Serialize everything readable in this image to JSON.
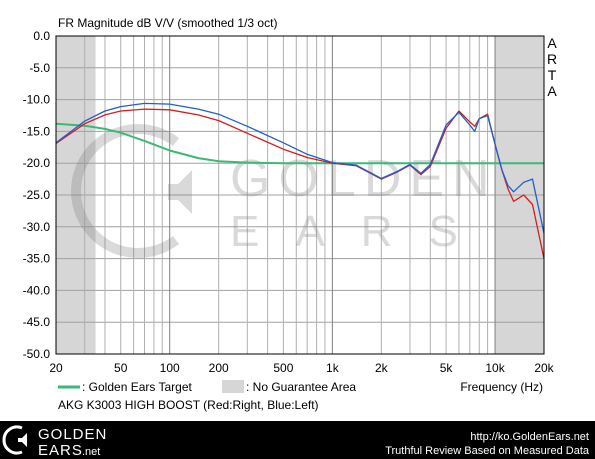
{
  "title": "FR Magnitude dB V/V (smoothed 1/3 oct)",
  "watermark": "ARTA",
  "logo_text_1": "GOLDEN",
  "logo_text_2": "EARS",
  "footer": {
    "brand_line1": "GOLDEN",
    "brand_line2": "EARS",
    "brand_suffix": ".net",
    "url": "http://ko.GoldenEars.net",
    "tagline": "Truthful Review Based on Measured Data"
  },
  "legend": {
    "target_label": ": Golden Ears Target",
    "no_guarantee_label": ": No Guarantee Area",
    "device_label": "AKG K3003 HIGH BOOST (Red:Right, Blue:Left)"
  },
  "colors": {
    "target": "#3cb878",
    "right": "#d81c1c",
    "left": "#1f5fc8",
    "shade": "#d6d6d6"
  },
  "chart_data": {
    "type": "line",
    "title": "FR Magnitude dB V/V (smoothed 1/3 oct)",
    "xlabel": "Frequency (Hz)",
    "ylabel": "",
    "x_scale": "log",
    "xlim": [
      20,
      20000
    ],
    "ylim": [
      -50,
      0
    ],
    "grid": true,
    "x_ticks": [
      20,
      50,
      100,
      200,
      500,
      1000,
      2000,
      5000,
      10000,
      20000
    ],
    "x_tick_labels": [
      "20",
      "50",
      "100",
      "200",
      "500",
      "1k",
      "2k",
      "5k",
      "10k",
      "20k"
    ],
    "y_ticks": [
      0,
      -5,
      -10,
      -15,
      -20,
      -25,
      -30,
      -35,
      -40,
      -45,
      -50
    ],
    "y_tick_labels": [
      "0.0",
      "-5.0",
      "-10.0",
      "-15.0",
      "-20.0",
      "-25.0",
      "-30.0",
      "-35.0",
      "-40.0",
      "-45.0",
      "-50.0"
    ],
    "shaded_regions": [
      [
        20,
        35
      ],
      [
        10000,
        20000
      ]
    ],
    "series": [
      {
        "name": "Golden Ears Target",
        "color": "#3cb878",
        "points": [
          [
            20,
            -13.8
          ],
          [
            30,
            -14.1
          ],
          [
            40,
            -14.6
          ],
          [
            50,
            -15.2
          ],
          [
            70,
            -16.5
          ],
          [
            100,
            -18.0
          ],
          [
            150,
            -19.2
          ],
          [
            200,
            -19.7
          ],
          [
            300,
            -19.9
          ],
          [
            500,
            -20.0
          ],
          [
            1000,
            -20.0
          ],
          [
            2000,
            -20.0
          ],
          [
            5000,
            -20.0
          ],
          [
            10000,
            -20.0
          ],
          [
            20000,
            -20.0
          ]
        ]
      },
      {
        "name": "Right",
        "color": "#d81c1c",
        "points": [
          [
            20,
            -16.9
          ],
          [
            30,
            -13.8
          ],
          [
            40,
            -12.4
          ],
          [
            50,
            -11.8
          ],
          [
            70,
            -11.5
          ],
          [
            100,
            -11.6
          ],
          [
            150,
            -12.4
          ],
          [
            200,
            -13.3
          ],
          [
            300,
            -15.3
          ],
          [
            500,
            -17.8
          ],
          [
            700,
            -19.1
          ],
          [
            1000,
            -20.0
          ],
          [
            1400,
            -20.4
          ],
          [
            2000,
            -22.5
          ],
          [
            2500,
            -21.4
          ],
          [
            3000,
            -20.3
          ],
          [
            3500,
            -21.8
          ],
          [
            4000,
            -20.5
          ],
          [
            5000,
            -14.5
          ],
          [
            6000,
            -11.8
          ],
          [
            7000,
            -13.5
          ],
          [
            7500,
            -14.2
          ],
          [
            8000,
            -13.0
          ],
          [
            9000,
            -12.3
          ],
          [
            10000,
            -17.0
          ],
          [
            11000,
            -21.0
          ],
          [
            12000,
            -24.0
          ],
          [
            13000,
            -26.0
          ],
          [
            15000,
            -25.0
          ],
          [
            17000,
            -26.5
          ],
          [
            20000,
            -35.0
          ]
        ]
      },
      {
        "name": "Left",
        "color": "#1f5fc8",
        "points": [
          [
            20,
            -16.8
          ],
          [
            30,
            -13.4
          ],
          [
            40,
            -11.8
          ],
          [
            50,
            -11.1
          ],
          [
            70,
            -10.6
          ],
          [
            100,
            -10.7
          ],
          [
            150,
            -11.5
          ],
          [
            200,
            -12.3
          ],
          [
            300,
            -14.2
          ],
          [
            500,
            -16.8
          ],
          [
            700,
            -18.6
          ],
          [
            1000,
            -19.9
          ],
          [
            1400,
            -20.3
          ],
          [
            2000,
            -22.4
          ],
          [
            2500,
            -21.3
          ],
          [
            3000,
            -20.2
          ],
          [
            3500,
            -21.6
          ],
          [
            4000,
            -20.2
          ],
          [
            5000,
            -14.0
          ],
          [
            6000,
            -12.0
          ],
          [
            7000,
            -14.0
          ],
          [
            7500,
            -15.0
          ],
          [
            8000,
            -13.0
          ],
          [
            9000,
            -12.5
          ],
          [
            10000,
            -17.0
          ],
          [
            11000,
            -21.0
          ],
          [
            12000,
            -23.5
          ],
          [
            13000,
            -24.5
          ],
          [
            15000,
            -23.0
          ],
          [
            17000,
            -22.5
          ],
          [
            20000,
            -31.0
          ]
        ]
      }
    ]
  }
}
